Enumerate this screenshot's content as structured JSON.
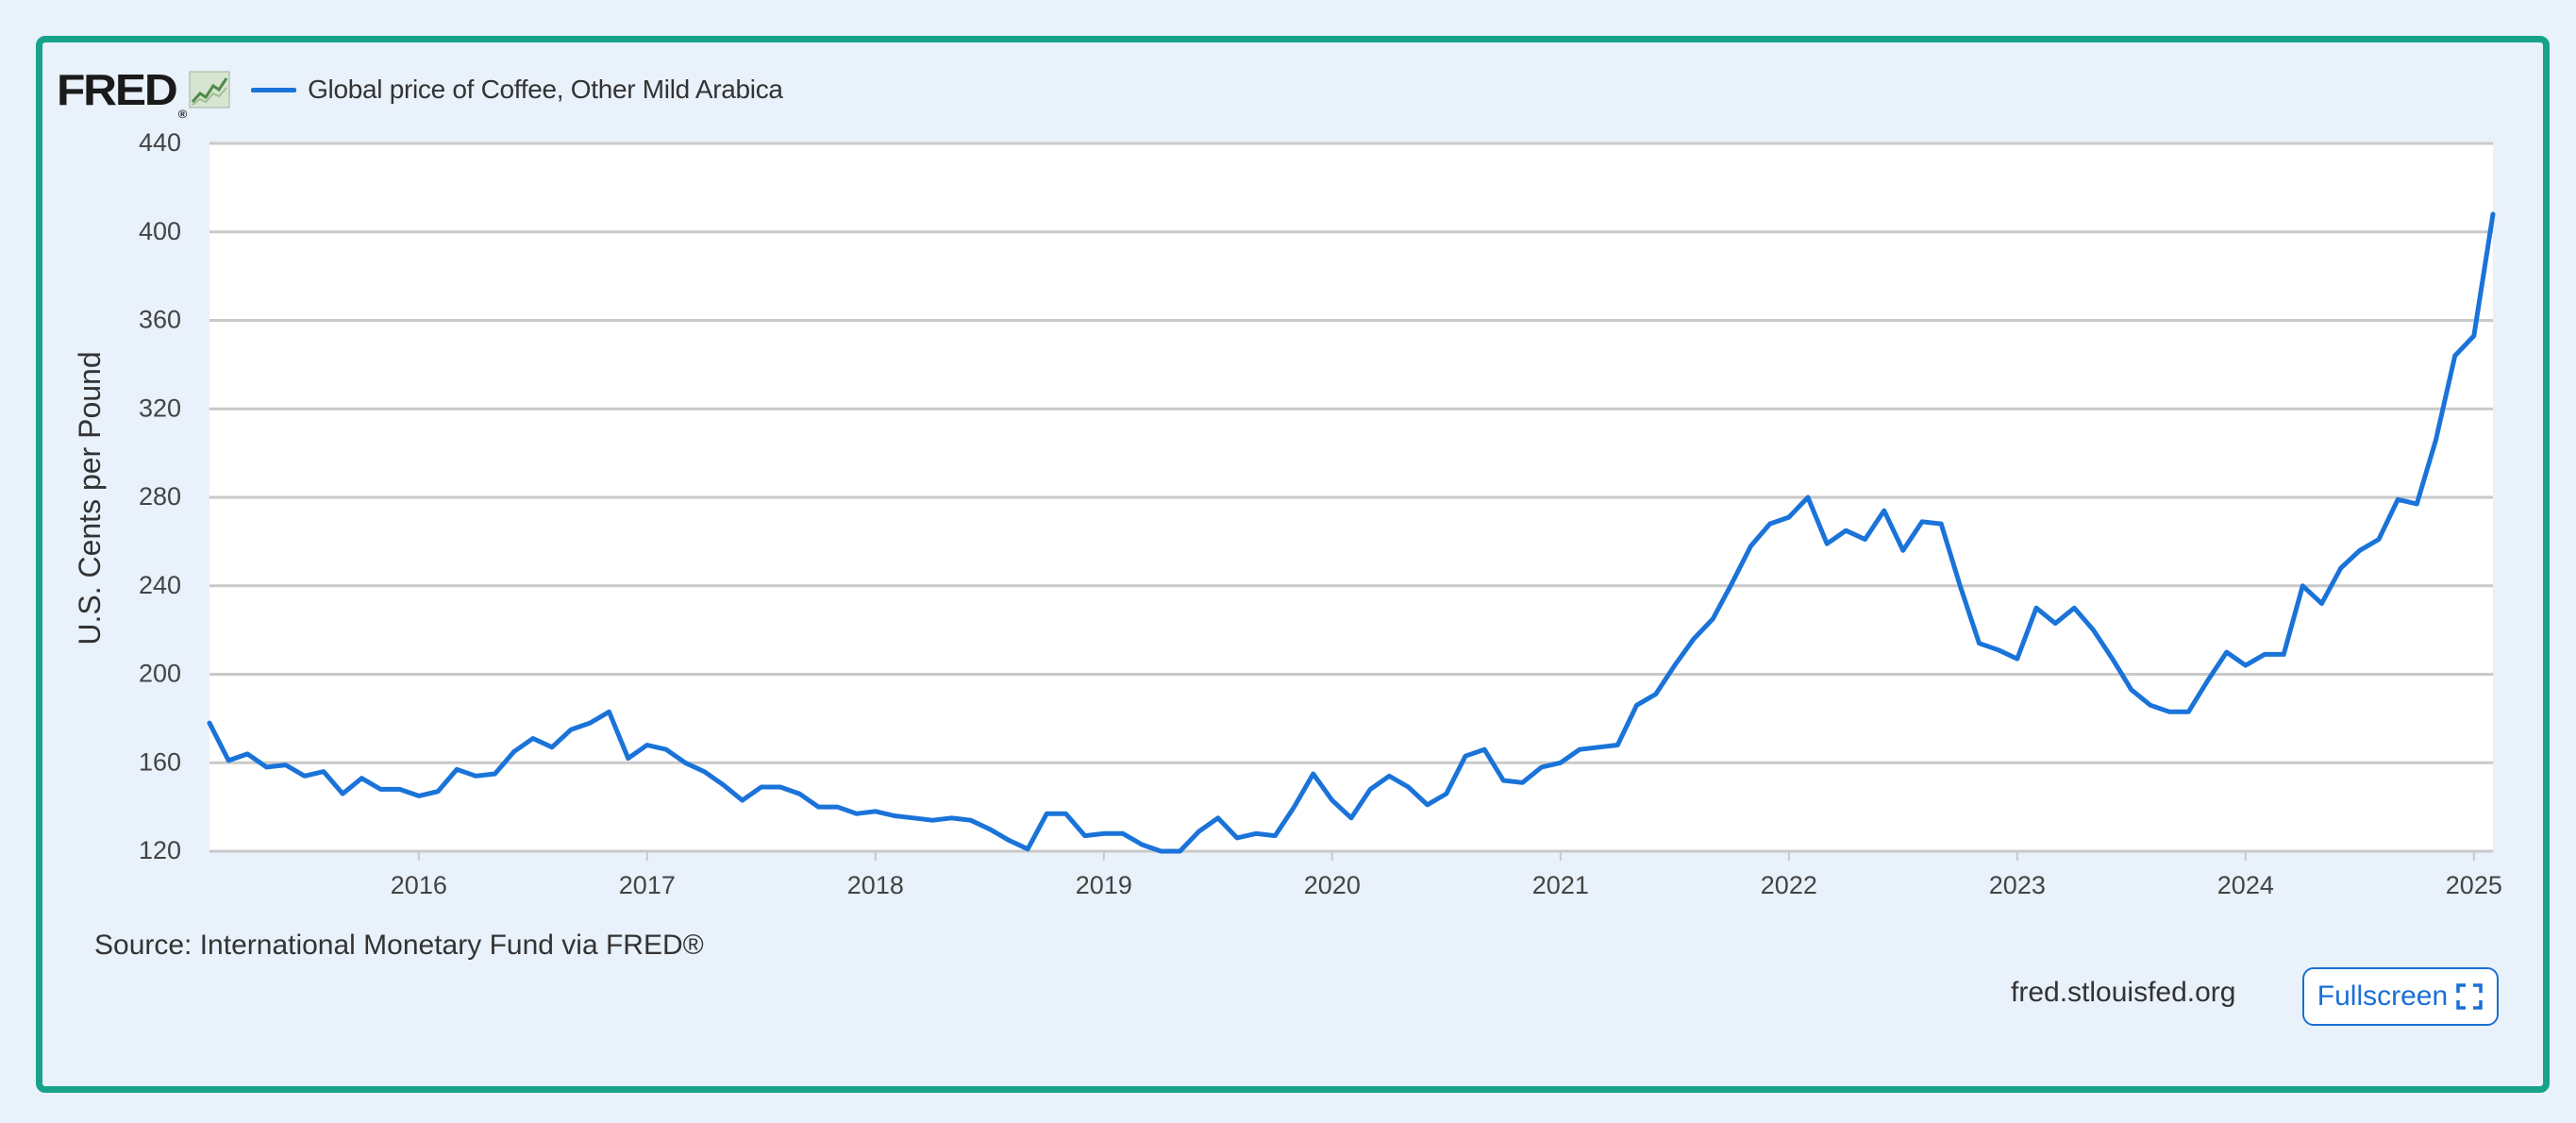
{
  "brand": {
    "logo_text": "FRED",
    "logo_mark": "®",
    "sparkline_icon": "chart-sparkline-icon"
  },
  "legend": {
    "label": "Global price of Coffee, Other Mild Arabica",
    "color": "#1a73d9"
  },
  "source_text": "Source: International Monetary Fund via FRED®",
  "site_text": "fred.stlouisfed.org",
  "fullscreen_label": "Fullscreen",
  "fullscreen_icon": "expand-icon",
  "chart_data": {
    "type": "line",
    "title": "",
    "xlabel": "",
    "ylabel": "U.S. Cents per Pound",
    "ylim": [
      120,
      440
    ],
    "yticks": [
      120,
      160,
      200,
      240,
      280,
      320,
      360,
      400,
      440
    ],
    "xlim": [
      "2015-02",
      "2025-02"
    ],
    "xticks": [
      "2016",
      "2017",
      "2018",
      "2019",
      "2020",
      "2021",
      "2022",
      "2023",
      "2024",
      "2025"
    ],
    "grid": "horizontal",
    "legend_position": "top-left",
    "line_color": "#1a73d9",
    "series": [
      {
        "name": "Global price of Coffee, Other Mild Arabica",
        "x": [
          "2015-02",
          "2015-03",
          "2015-04",
          "2015-05",
          "2015-06",
          "2015-07",
          "2015-08",
          "2015-09",
          "2015-10",
          "2015-11",
          "2015-12",
          "2016-01",
          "2016-02",
          "2016-03",
          "2016-04",
          "2016-05",
          "2016-06",
          "2016-07",
          "2016-08",
          "2016-09",
          "2016-10",
          "2016-11",
          "2016-12",
          "2017-01",
          "2017-02",
          "2017-03",
          "2017-04",
          "2017-05",
          "2017-06",
          "2017-07",
          "2017-08",
          "2017-09",
          "2017-10",
          "2017-11",
          "2017-12",
          "2018-01",
          "2018-02",
          "2018-03",
          "2018-04",
          "2018-05",
          "2018-06",
          "2018-07",
          "2018-08",
          "2018-09",
          "2018-10",
          "2018-11",
          "2018-12",
          "2019-01",
          "2019-02",
          "2019-03",
          "2019-04",
          "2019-05",
          "2019-06",
          "2019-07",
          "2019-08",
          "2019-09",
          "2019-10",
          "2019-11",
          "2019-12",
          "2020-01",
          "2020-02",
          "2020-03",
          "2020-04",
          "2020-05",
          "2020-06",
          "2020-07",
          "2020-08",
          "2020-09",
          "2020-10",
          "2020-11",
          "2020-12",
          "2021-01",
          "2021-02",
          "2021-03",
          "2021-04",
          "2021-05",
          "2021-06",
          "2021-07",
          "2021-08",
          "2021-09",
          "2021-10",
          "2021-11",
          "2021-12",
          "2022-01",
          "2022-02",
          "2022-03",
          "2022-04",
          "2022-05",
          "2022-06",
          "2022-07",
          "2022-08",
          "2022-09",
          "2022-10",
          "2022-11",
          "2022-12",
          "2023-01",
          "2023-02",
          "2023-03",
          "2023-04",
          "2023-05",
          "2023-06",
          "2023-07",
          "2023-08",
          "2023-09",
          "2023-10",
          "2023-11",
          "2023-12",
          "2024-01",
          "2024-02",
          "2024-03",
          "2024-04",
          "2024-05",
          "2024-06",
          "2024-07",
          "2024-08",
          "2024-09",
          "2024-10",
          "2024-11",
          "2024-12",
          "2025-01",
          "2025-02"
        ],
        "y": [
          178,
          161,
          164,
          158,
          159,
          154,
          156,
          146,
          153,
          148,
          148,
          145,
          147,
          157,
          154,
          155,
          165,
          171,
          167,
          175,
          178,
          183,
          162,
          168,
          166,
          160,
          156,
          150,
          143,
          149,
          149,
          146,
          140,
          140,
          137,
          138,
          136,
          135,
          134,
          135,
          134,
          130,
          125,
          121,
          137,
          137,
          127,
          128,
          128,
          123,
          120,
          120,
          129,
          135,
          126,
          128,
          127,
          140,
          155,
          143,
          135,
          148,
          154,
          149,
          141,
          146,
          163,
          166,
          152,
          151,
          158,
          160,
          166,
          167,
          168,
          186,
          191,
          204,
          216,
          225,
          241,
          258,
          268,
          271,
          280,
          259,
          265,
          261,
          274,
          256,
          269,
          268,
          240,
          214,
          211,
          207,
          230,
          223,
          230,
          220,
          207,
          193,
          186,
          183,
          183,
          197,
          210,
          204,
          209,
          209,
          240,
          232,
          248,
          256,
          261,
          279,
          277,
          306,
          344,
          353,
          408
        ]
      }
    ]
  }
}
